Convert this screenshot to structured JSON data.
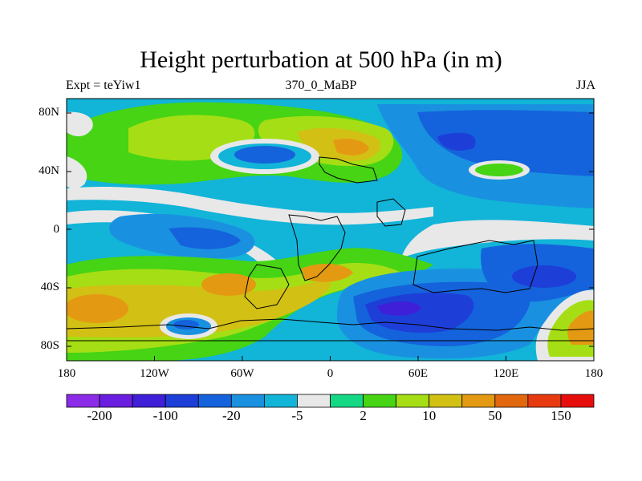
{
  "title": "Height perturbation at 500 hPa (in m)",
  "subtitle_left": "Expt = teYiw1",
  "subtitle_center": "370_0_MaBP",
  "subtitle_right": "JJA",
  "lat_labels": [
    "80N",
    "40N",
    "0",
    "40S",
    "80S"
  ],
  "lat_values": [
    80,
    40,
    0,
    -40,
    -80
  ],
  "lon_labels": [
    "180",
    "120W",
    "60W",
    "0",
    "60E",
    "120E",
    "180"
  ],
  "lon_values": [
    -180,
    -120,
    -60,
    0,
    60,
    120,
    180
  ],
  "colorbar": {
    "colors": [
      "#8c2ce8",
      "#6a1fe0",
      "#3f1fd8",
      "#1d3fd8",
      "#1463dc",
      "#1a91e0",
      "#12b4d8",
      "#e8e8e8",
      "#14d884",
      "#46d414",
      "#a5de14",
      "#d2c014",
      "#e39a12",
      "#e2680f",
      "#e83a10",
      "#e80d0d"
    ],
    "labels": [
      "-200",
      "-100",
      "-20",
      "-5",
      "2",
      "10",
      "50",
      "150"
    ]
  }
}
